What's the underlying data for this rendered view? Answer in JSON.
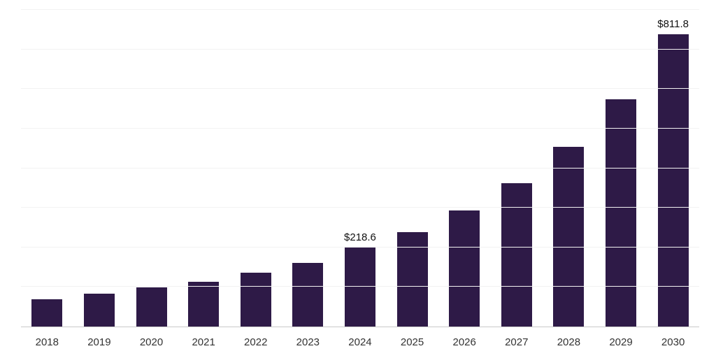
{
  "chart_data": {
    "type": "bar",
    "title": "",
    "xlabel": "",
    "ylabel": "",
    "categories": [
      "2018",
      "2019",
      "2020",
      "2021",
      "2022",
      "2023",
      "2024",
      "2025",
      "2026",
      "2027",
      "2028",
      "2029",
      "2030"
    ],
    "values": [
      76,
      91,
      108,
      124,
      149,
      176,
      218.6,
      262,
      322,
      398,
      499,
      632,
      811.8
    ],
    "data_labels": {
      "2024": "$218.6",
      "2030": "$811.8"
    },
    "ylim": [
      0,
      880
    ],
    "grid": true,
    "grid_step": 110,
    "legend": false,
    "colors": {
      "bar": "#2e1a47",
      "gridline": "#f2f2f2",
      "axis_line": "#c9c9c9",
      "data_label": "#111111",
      "tick_label": "#333333",
      "background": "#ffffff"
    }
  }
}
